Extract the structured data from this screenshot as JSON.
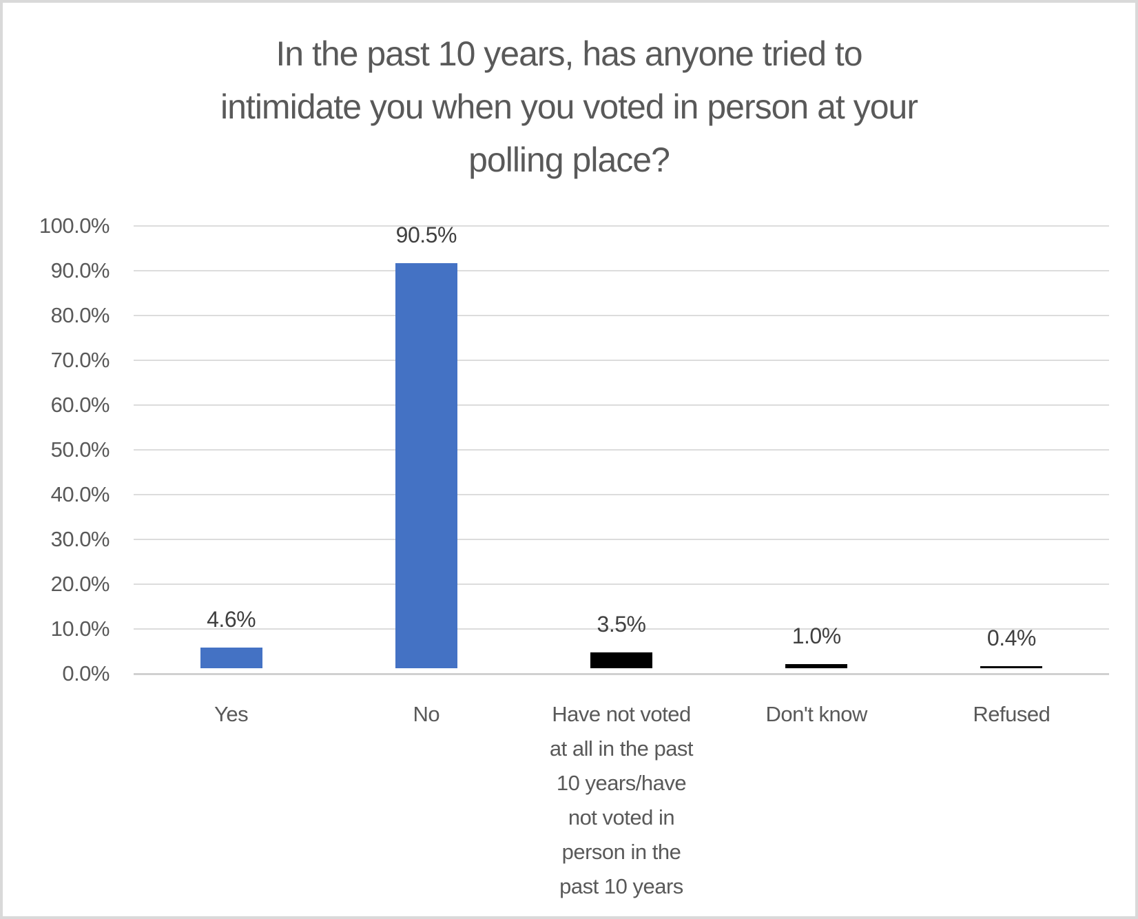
{
  "chart_data": {
    "type": "bar",
    "title": "In the past 10 years, has anyone tried to intimidate you when you voted in person at your polling place?",
    "title_lines": [
      "In the past 10 years, has anyone tried to",
      "intimidate you when you voted in person at your",
      "polling place?"
    ],
    "categories": [
      "Yes",
      "No",
      "Have not voted at all in the past 10 years/have not voted in person in the past 10 years",
      "Don't know",
      "Refused"
    ],
    "category_label_lines": [
      [
        "Yes"
      ],
      [
        "No"
      ],
      [
        "Have not voted",
        "at all in the past",
        "10 years/have",
        "not voted in",
        "person in the",
        "past 10 years"
      ],
      [
        "Don't know"
      ],
      [
        "Refused"
      ]
    ],
    "values": [
      4.6,
      90.5,
      3.5,
      1.0,
      0.4
    ],
    "value_labels": [
      "4.6%",
      "90.5%",
      "3.5%",
      "1.0%",
      "0.4%"
    ],
    "bar_colors": [
      "#4472c4",
      "#4472c4",
      "#000000",
      "#000000",
      "#000000"
    ],
    "yticks": [
      "0.0%",
      "10.0%",
      "20.0%",
      "30.0%",
      "40.0%",
      "50.0%",
      "60.0%",
      "70.0%",
      "80.0%",
      "90.0%",
      "100.0%"
    ],
    "ylim": [
      0,
      100
    ],
    "ytick_step": 10,
    "xlabel": "",
    "ylabel": "",
    "grid": "horizontal",
    "legend": "none"
  },
  "colors": {
    "background": "#ffffff",
    "frame_border": "#d9d9d9",
    "gridline": "#dcdcdc",
    "axis_line": "#d0d0d0",
    "title_text": "#595959",
    "axis_text": "#595959",
    "data_label_text": "#404040",
    "bar_blue": "#4472c4",
    "bar_black": "#000000"
  }
}
